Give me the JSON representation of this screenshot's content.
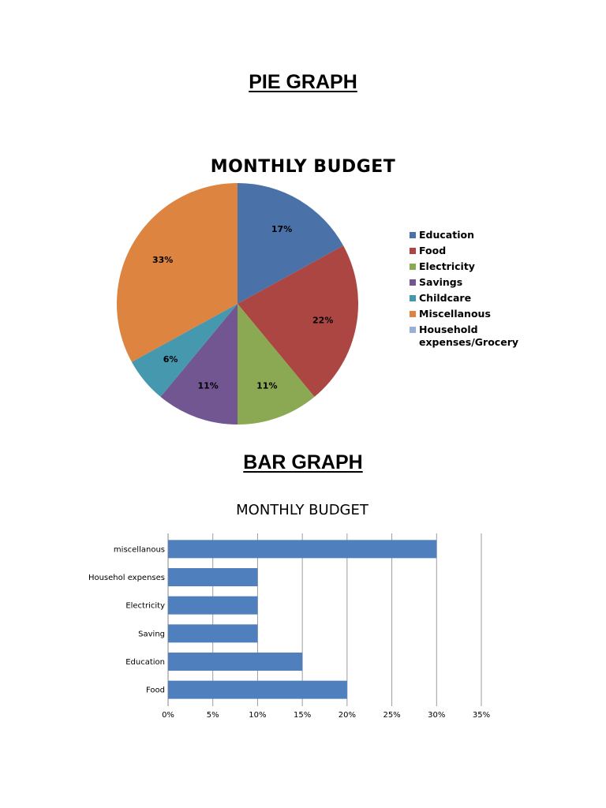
{
  "page": {
    "pie_heading": "PIE GRAPH",
    "bar_heading": "BAR GRAPH"
  },
  "colors": {
    "education": "#4a72a8",
    "food": "#ab4643",
    "electricity": "#8ba952",
    "savings": "#715691",
    "childcare": "#4598ad",
    "miscellanous": "#dc8440",
    "household": "#9daed6",
    "bar": "#4f7fbc",
    "gridline": "#9c9c9c"
  },
  "chart_data": [
    {
      "type": "pie",
      "title": "MONTHLY BUDGET",
      "categories": [
        "Education",
        "Food",
        "Electricity",
        "Savings",
        "Childcare",
        "Miscellanous",
        "Household expenses/Grocery"
      ],
      "values": [
        17,
        22,
        11,
        11,
        6,
        33,
        0
      ],
      "value_labels": [
        "17%",
        "22%",
        "11%",
        "11%",
        "6%",
        "33%",
        ""
      ],
      "legend_position": "right",
      "start_angle": "12 o'clock, clockwise"
    },
    {
      "type": "bar",
      "orientation": "horizontal",
      "title": "MONTHLY BUDGET",
      "categories": [
        "miscellanous",
        "Househol expenses",
        "Electricity",
        "Saving",
        "Education",
        "Food"
      ],
      "values": [
        30,
        10,
        10,
        10,
        15,
        20
      ],
      "xlabel": "",
      "ylabel": "",
      "xlim": [
        0,
        35
      ],
      "x_ticks": [
        "0%",
        "5%",
        "10%",
        "15%",
        "20%",
        "25%",
        "30%",
        "35%"
      ],
      "grid": "vertical major gridlines",
      "legend": "none"
    }
  ]
}
